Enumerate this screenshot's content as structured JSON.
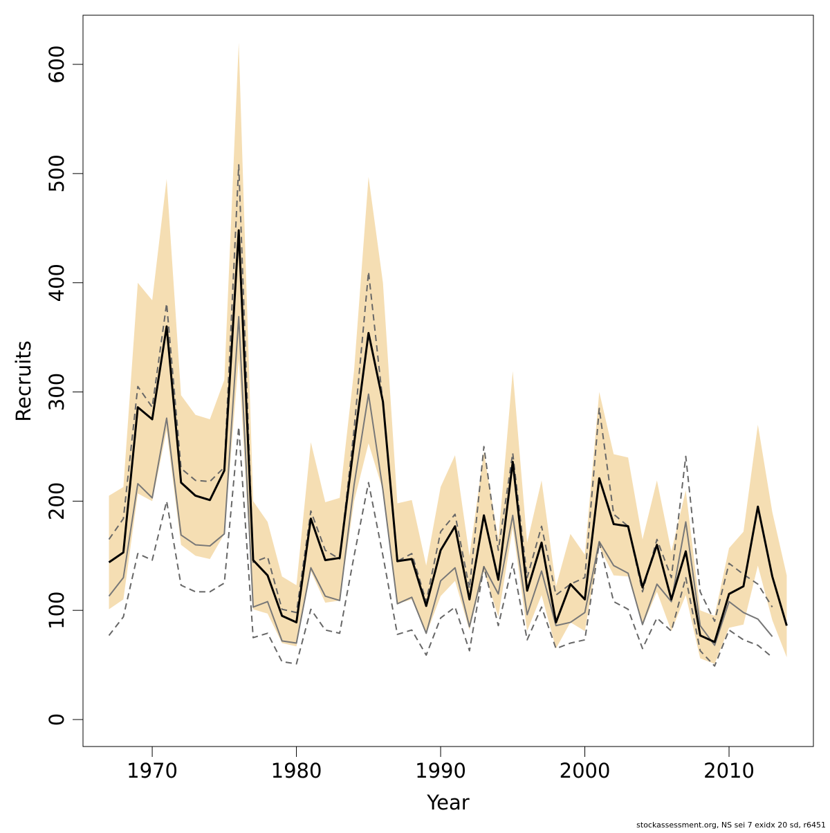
{
  "chart_data": {
    "type": "line",
    "xlabel": "Year",
    "ylabel": "Recruits",
    "footnote": "stockassessment.org, NS sei 7 exidx 20 sd, r6451",
    "x": [
      1967,
      1968,
      1969,
      1970,
      1971,
      1972,
      1973,
      1974,
      1975,
      1976,
      1977,
      1978,
      1979,
      1980,
      1981,
      1982,
      1983,
      1984,
      1985,
      1986,
      1987,
      1988,
      1989,
      1990,
      1991,
      1992,
      1993,
      1994,
      1995,
      1996,
      1997,
      1998,
      1999,
      2000,
      2001,
      2002,
      2003,
      2004,
      2005,
      2006,
      2007,
      2008,
      2009,
      2010,
      2011,
      2012,
      2013,
      2014
    ],
    "band": {
      "color": "#f5deb3",
      "lower": [
        101,
        110,
        207,
        200,
        265,
        160,
        150,
        147,
        170,
        330,
        101,
        97,
        70,
        67,
        136,
        107,
        109,
        200,
        253,
        210,
        106,
        110,
        78,
        113,
        127,
        82,
        136,
        94,
        176,
        81,
        114,
        65,
        89,
        81,
        158,
        132,
        131,
        86,
        117,
        81,
        114,
        56,
        51,
        84,
        87,
        141,
        91,
        57
      ],
      "upper": [
        205,
        213,
        400,
        384,
        495,
        297,
        279,
        275,
        311,
        620,
        200,
        181,
        131,
        123,
        254,
        199,
        203,
        320,
        497,
        400,
        198,
        201,
        141,
        213,
        242,
        150,
        245,
        165,
        319,
        162,
        219,
        122,
        170,
        151,
        300,
        243,
        240,
        165,
        219,
        154,
        210,
        100,
        95,
        157,
        172,
        270,
        190,
        132
      ]
    },
    "series": [
      {
        "color": "#777777",
        "dashed": false,
        "width": 2,
        "values": [
          113,
          130,
          216,
          203,
          276,
          169,
          160,
          159,
          170,
          369,
          103,
          108,
          72,
          70,
          139,
          113,
          109,
          215,
          298,
          210,
          106,
          112,
          79,
          127,
          139,
          85,
          140,
          115,
          187,
          96,
          136,
          86,
          89,
          98,
          163,
          141,
          134,
          87,
          124,
          108,
          181,
          86,
          68,
          108,
          98,
          92,
          76,
          null
        ]
      },
      {
        "color": "#666666",
        "dashed": true,
        "width": 2,
        "values": [
          165,
          184,
          305,
          286,
          381,
          230,
          219,
          218,
          231,
          508,
          144,
          149,
          101,
          98,
          191,
          155,
          147,
          266,
          410,
          290,
          145,
          152,
          108,
          172,
          188,
          120,
          250,
          155,
          244,
          130,
          177,
          114,
          124,
          130,
          285,
          188,
          177,
          117,
          165,
          130,
          241,
          117,
          90,
          143,
          133,
          124,
          103,
          null
        ]
      },
      {
        "color": "#666666",
        "dashed": true,
        "width": 2,
        "values": [
          77,
          94,
          152,
          146,
          200,
          123,
          117,
          117,
          125,
          268,
          75,
          79,
          53,
          51,
          101,
          82,
          79,
          150,
          217,
          150,
          78,
          82,
          59,
          93,
          103,
          63,
          140,
          86,
          143,
          73,
          103,
          65,
          70,
          73,
          162,
          108,
          101,
          65,
          93,
          81,
          130,
          63,
          49,
          82,
          73,
          68,
          57,
          null
        ]
      },
      {
        "color": "#000000",
        "dashed": false,
        "width": 3,
        "values": [
          144,
          153,
          286,
          275,
          360,
          217,
          205,
          201,
          228,
          448,
          146,
          132,
          95,
          89,
          184,
          146,
          148,
          253,
          354,
          291,
          145,
          147,
          104,
          155,
          177,
          110,
          187,
          128,
          236,
          118,
          162,
          89,
          124,
          110,
          221,
          179,
          177,
          121,
          160,
          110,
          154,
          77,
          71,
          115,
          122,
          195,
          131,
          86
        ]
      }
    ],
    "xlim": [
      1965.2,
      2015.85
    ],
    "ylim": [
      -24.7,
      645
    ],
    "xticks": [
      1970,
      1980,
      1990,
      2000,
      2010
    ],
    "yticks": [
      0,
      100,
      200,
      300,
      400,
      500,
      600
    ]
  }
}
